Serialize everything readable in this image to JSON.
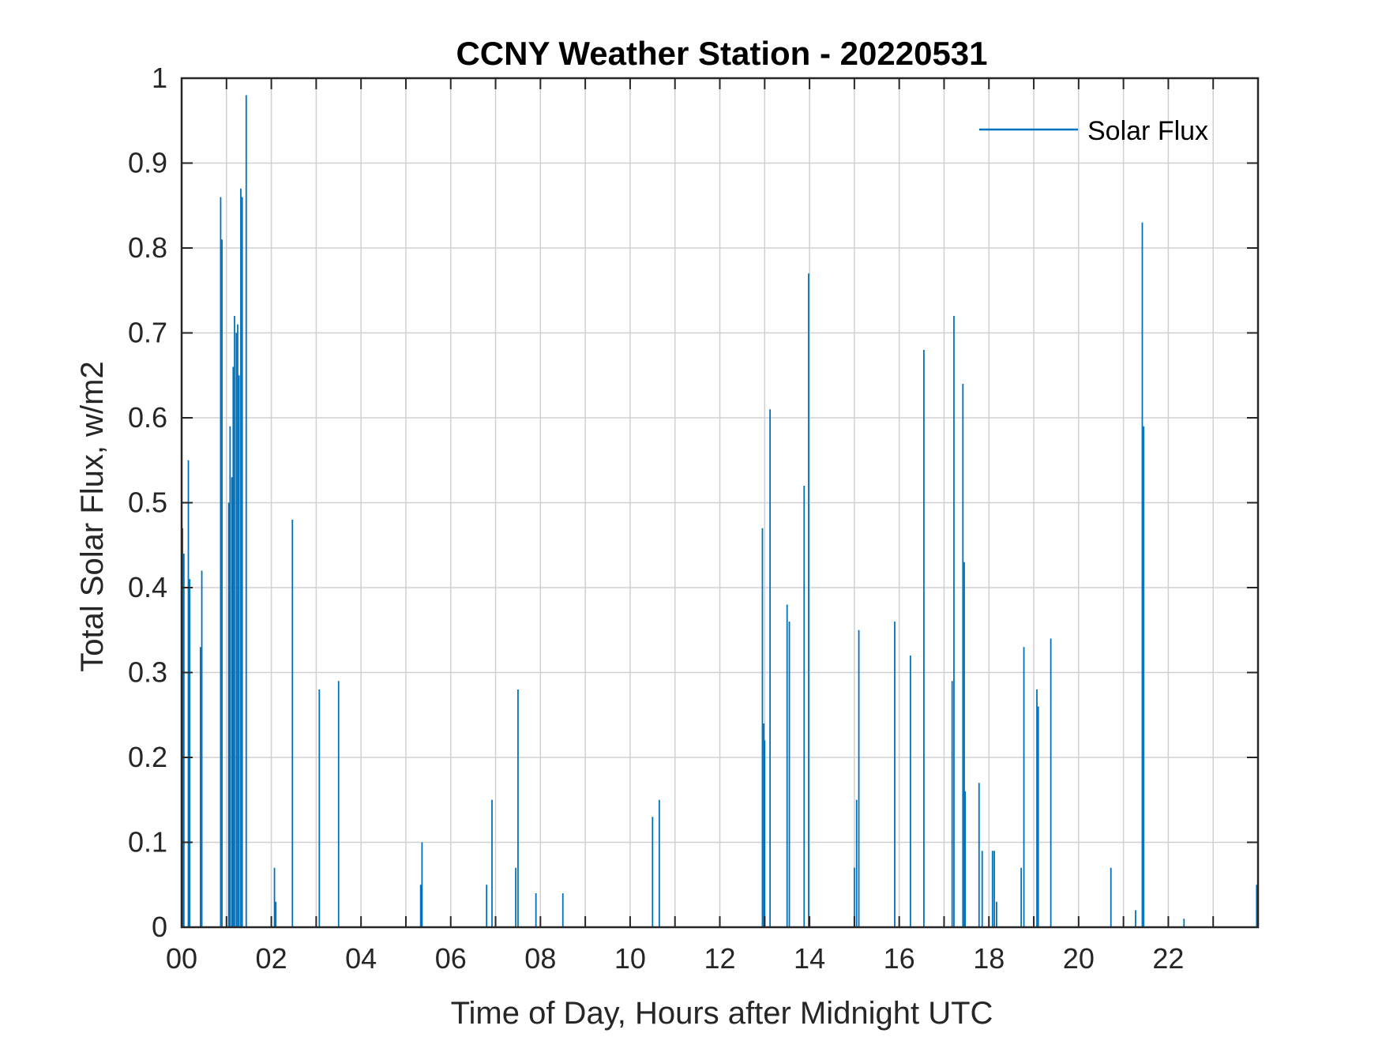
{
  "chart_data": {
    "type": "line",
    "title": "CCNY Weather Station - 20220531",
    "xlabel": "Time of Day, Hours after Midnight UTC",
    "ylabel": "Total Solar Flux, w/m2",
    "xlim": [
      0,
      24
    ],
    "ylim": [
      0,
      1
    ],
    "grid": true,
    "legend_position": "top-right",
    "series_color": "#0072BD",
    "x_ticks": [
      0,
      2,
      4,
      6,
      8,
      10,
      12,
      14,
      16,
      18,
      20,
      22
    ],
    "x_tick_labels": [
      "00",
      "02",
      "04",
      "06",
      "08",
      "10",
      "12",
      "14",
      "16",
      "18",
      "20",
      "22"
    ],
    "y_ticks": [
      0,
      0.1,
      0.2,
      0.3,
      0.4,
      0.5,
      0.6,
      0.7,
      0.8,
      0.9,
      1
    ],
    "y_tick_labels": [
      "0",
      "0.1",
      "0.2",
      "0.3",
      "0.4",
      "0.5",
      "0.6",
      "0.7",
      "0.8",
      "0.9",
      "1"
    ],
    "series": [
      {
        "name": "Solar Flux",
        "points": [
          [
            0.02,
            0.47
          ],
          [
            0.05,
            0.44
          ],
          [
            0.15,
            0.55
          ],
          [
            0.18,
            0.41
          ],
          [
            0.42,
            0.33
          ],
          [
            0.45,
            0.42
          ],
          [
            0.87,
            0.86
          ],
          [
            0.9,
            0.81
          ],
          [
            1.05,
            0.5
          ],
          [
            1.08,
            0.59
          ],
          [
            1.12,
            0.53
          ],
          [
            1.15,
            0.66
          ],
          [
            1.18,
            0.72
          ],
          [
            1.22,
            0.7
          ],
          [
            1.25,
            0.71
          ],
          [
            1.28,
            0.65
          ],
          [
            1.32,
            0.87
          ],
          [
            1.35,
            0.86
          ],
          [
            1.44,
            0.98
          ],
          [
            2.07,
            0.07
          ],
          [
            2.1,
            0.03
          ],
          [
            2.47,
            0.48
          ],
          [
            3.07,
            0.28
          ],
          [
            3.5,
            0.29
          ],
          [
            5.33,
            0.05
          ],
          [
            5.36,
            0.1
          ],
          [
            6.8,
            0.05
          ],
          [
            6.92,
            0.15
          ],
          [
            7.45,
            0.07
          ],
          [
            7.5,
            0.28
          ],
          [
            7.9,
            0.04
          ],
          [
            8.5,
            0.04
          ],
          [
            10.5,
            0.13
          ],
          [
            10.65,
            0.15
          ],
          [
            12.95,
            0.47
          ],
          [
            12.98,
            0.24
          ],
          [
            13.0,
            0.22
          ],
          [
            13.12,
            0.61
          ],
          [
            13.5,
            0.38
          ],
          [
            13.55,
            0.36
          ],
          [
            13.88,
            0.52
          ],
          [
            13.98,
            0.77
          ],
          [
            15.0,
            0.07
          ],
          [
            15.05,
            0.15
          ],
          [
            15.1,
            0.35
          ],
          [
            15.9,
            0.36
          ],
          [
            16.25,
            0.32
          ],
          [
            16.55,
            0.68
          ],
          [
            17.18,
            0.29
          ],
          [
            17.22,
            0.72
          ],
          [
            17.42,
            0.64
          ],
          [
            17.45,
            0.43
          ],
          [
            17.47,
            0.16
          ],
          [
            17.78,
            0.17
          ],
          [
            17.85,
            0.09
          ],
          [
            18.08,
            0.09
          ],
          [
            18.12,
            0.09
          ],
          [
            18.17,
            0.03
          ],
          [
            18.72,
            0.07
          ],
          [
            18.78,
            0.33
          ],
          [
            19.07,
            0.28
          ],
          [
            19.1,
            0.26
          ],
          [
            19.38,
            0.34
          ],
          [
            20.72,
            0.07
          ],
          [
            21.27,
            0.02
          ],
          [
            21.42,
            0.83
          ],
          [
            21.45,
            0.59
          ],
          [
            22.35,
            0.01
          ],
          [
            23.97,
            0.05
          ]
        ]
      }
    ]
  }
}
